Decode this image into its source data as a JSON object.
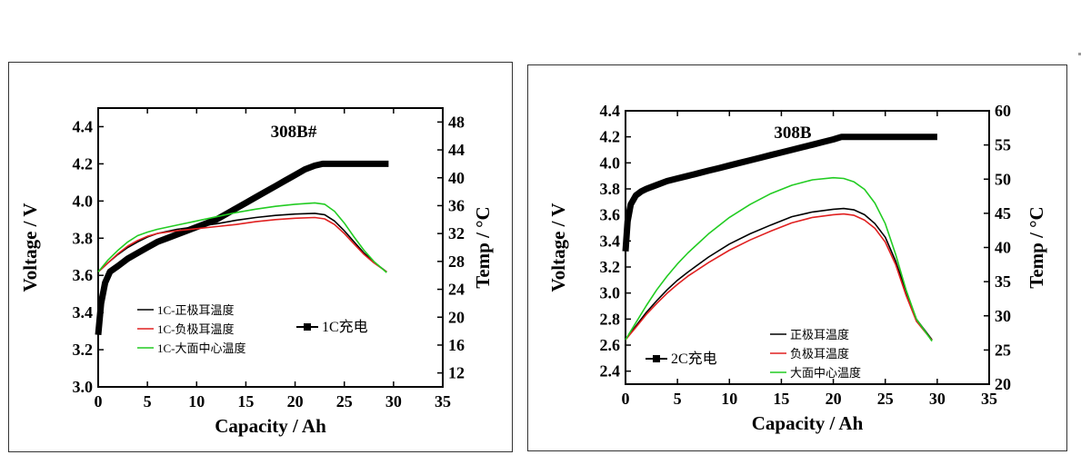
{
  "chart_data": [
    {
      "type": "line",
      "title": "308B#",
      "xlabel": "Capacity / Ah",
      "ylabel_left": "Voltage / V",
      "ylabel_right": "Temp / °C",
      "xlim": [
        0,
        35
      ],
      "ylim_left": [
        3.0,
        4.5
      ],
      "ylim_right": [
        10,
        50
      ],
      "x_ticks": [
        "0",
        "5",
        "10",
        "15",
        "20",
        "25",
        "30",
        "35"
      ],
      "y_left_ticks": [
        "3.0",
        "3.2",
        "3.4",
        "3.6",
        "3.8",
        "4.0",
        "4.2",
        "4.4"
      ],
      "y_right_ticks": [
        "12",
        "16",
        "20",
        "24",
        "28",
        "32",
        "36",
        "40",
        "44",
        "48"
      ],
      "grid": false,
      "legend_position": "bottom-left",
      "series": [
        {
          "name": "1C充电",
          "axis": "left",
          "color": "#000000",
          "style": "thick-square-marker",
          "x": [
            0,
            0.3,
            0.7,
            1.2,
            2,
            3,
            4,
            5,
            6,
            7,
            8,
            9,
            10,
            11,
            12,
            13,
            14,
            15,
            16,
            17,
            18,
            19,
            20,
            21,
            22,
            22.8,
            23.5,
            25,
            27,
            29.5
          ],
          "y": [
            3.28,
            3.45,
            3.56,
            3.62,
            3.65,
            3.69,
            3.72,
            3.75,
            3.78,
            3.8,
            3.82,
            3.84,
            3.86,
            3.88,
            3.9,
            3.93,
            3.96,
            3.99,
            4.02,
            4.05,
            4.08,
            4.11,
            4.14,
            4.17,
            4.19,
            4.2,
            4.2,
            4.2,
            4.2,
            4.2
          ]
        },
        {
          "name": "1C-正极耳温度",
          "axis": "right",
          "color": "#000000",
          "style": "thin",
          "x": [
            0,
            1,
            2,
            3,
            4,
            5,
            6,
            8,
            10,
            12,
            14,
            16,
            18,
            20,
            22,
            23,
            24,
            25,
            26,
            27,
            28,
            29.3
          ],
          "y": [
            26.5,
            27.8,
            29.0,
            30.0,
            30.8,
            31.5,
            32.0,
            32.6,
            33.0,
            33.4,
            33.9,
            34.3,
            34.6,
            34.8,
            34.9,
            34.7,
            33.8,
            32.4,
            30.8,
            29.2,
            27.9,
            26.5
          ]
        },
        {
          "name": "1C-负极耳温度",
          "axis": "right",
          "color": "#e02020",
          "style": "thin",
          "x": [
            0,
            1,
            2,
            3,
            4,
            5,
            6,
            8,
            10,
            12,
            14,
            16,
            18,
            20,
            22,
            23,
            24,
            25,
            26,
            27,
            28,
            29.3
          ],
          "y": [
            26.5,
            27.8,
            29.1,
            30.2,
            31.0,
            31.6,
            32.0,
            32.4,
            32.7,
            33.0,
            33.3,
            33.7,
            34.0,
            34.2,
            34.3,
            34.1,
            33.3,
            32.0,
            30.5,
            29.0,
            27.8,
            26.5
          ]
        },
        {
          "name": "1C-大面中心温度",
          "axis": "right",
          "color": "#22cc22",
          "style": "thin",
          "x": [
            0,
            1,
            2,
            3,
            4,
            5,
            6,
            8,
            10,
            12,
            14,
            16,
            18,
            20,
            22,
            23,
            24,
            25,
            26,
            27,
            28,
            29.3
          ],
          "y": [
            26.5,
            28.2,
            29.6,
            30.8,
            31.7,
            32.2,
            32.6,
            33.2,
            33.8,
            34.4,
            35.0,
            35.5,
            35.9,
            36.2,
            36.4,
            36.2,
            35.2,
            33.5,
            31.5,
            29.6,
            28.0,
            26.4
          ]
        }
      ]
    },
    {
      "type": "line",
      "title": "308B",
      "xlabel": "Capacity / Ah",
      "ylabel_left": "Voltage / V",
      "ylabel_right": "Temp / °C",
      "xlim": [
        0,
        35
      ],
      "ylim_left": [
        2.3,
        4.4
      ],
      "ylim_right": [
        20,
        60
      ],
      "x_ticks": [
        "0",
        "5",
        "10",
        "15",
        "20",
        "25",
        "30",
        "35"
      ],
      "y_left_ticks": [
        "2.4",
        "2.6",
        "2.8",
        "3.0",
        "3.2",
        "3.4",
        "3.6",
        "3.8",
        "4.0",
        "4.2",
        "4.4"
      ],
      "y_right_ticks": [
        "20",
        "25",
        "30",
        "35",
        "40",
        "45",
        "50",
        "55",
        "60"
      ],
      "grid": false,
      "legend_position": "bottom-right",
      "series": [
        {
          "name": "2C充电",
          "axis": "left",
          "color": "#000000",
          "style": "thick-square-marker",
          "x": [
            0,
            0.2,
            0.5,
            1,
            1.5,
            2,
            3,
            4,
            5,
            6,
            7,
            8,
            9,
            10,
            11,
            12,
            13,
            14,
            15,
            16,
            17,
            18,
            19,
            20,
            20.8,
            21.5,
            24,
            27,
            30
          ],
          "y": [
            3.32,
            3.55,
            3.68,
            3.75,
            3.78,
            3.8,
            3.83,
            3.86,
            3.88,
            3.9,
            3.92,
            3.94,
            3.96,
            3.98,
            4.0,
            4.02,
            4.04,
            4.06,
            4.08,
            4.1,
            4.12,
            4.14,
            4.16,
            4.18,
            4.2,
            4.2,
            4.2,
            4.2,
            4.2
          ]
        },
        {
          "name": "正极耳温度",
          "axis": "right",
          "color": "#000000",
          "style": "thin",
          "x": [
            0,
            1,
            2,
            3,
            4,
            5,
            6,
            8,
            10,
            12,
            14,
            16,
            18,
            20,
            21,
            22,
            23,
            24,
            25,
            26,
            27,
            28,
            29.5
          ],
          "y": [
            26.5,
            28.5,
            30.5,
            32.2,
            33.8,
            35.2,
            36.4,
            38.6,
            40.5,
            42.0,
            43.3,
            44.5,
            45.2,
            45.6,
            45.7,
            45.5,
            44.8,
            43.5,
            41.5,
            38.0,
            33.5,
            29.5,
            26.5
          ]
        },
        {
          "name": "负极耳温度",
          "axis": "right",
          "color": "#e02020",
          "style": "thin",
          "x": [
            0,
            1,
            2,
            3,
            4,
            5,
            6,
            8,
            10,
            12,
            14,
            16,
            18,
            20,
            21,
            22,
            23,
            24,
            25,
            26,
            27,
            28,
            29.5
          ],
          "y": [
            26.5,
            28.3,
            30.2,
            31.8,
            33.3,
            34.6,
            35.8,
            37.8,
            39.6,
            41.1,
            42.4,
            43.6,
            44.4,
            44.8,
            44.9,
            44.7,
            44.0,
            42.8,
            40.8,
            37.5,
            33.0,
            29.2,
            26.4
          ]
        },
        {
          "name": "大面中心温度",
          "axis": "right",
          "color": "#22cc22",
          "style": "thin",
          "x": [
            0,
            1,
            2,
            3,
            4,
            5,
            6,
            8,
            10,
            12,
            14,
            16,
            18,
            20,
            21,
            22,
            23,
            24,
            25,
            26,
            27,
            28,
            29.5
          ],
          "y": [
            26.5,
            29.0,
            31.5,
            33.8,
            35.8,
            37.6,
            39.2,
            42.0,
            44.4,
            46.3,
            47.9,
            49.1,
            49.9,
            50.2,
            50.1,
            49.6,
            48.5,
            46.5,
            43.5,
            39.0,
            33.8,
            29.5,
            26.3
          ]
        }
      ]
    }
  ]
}
